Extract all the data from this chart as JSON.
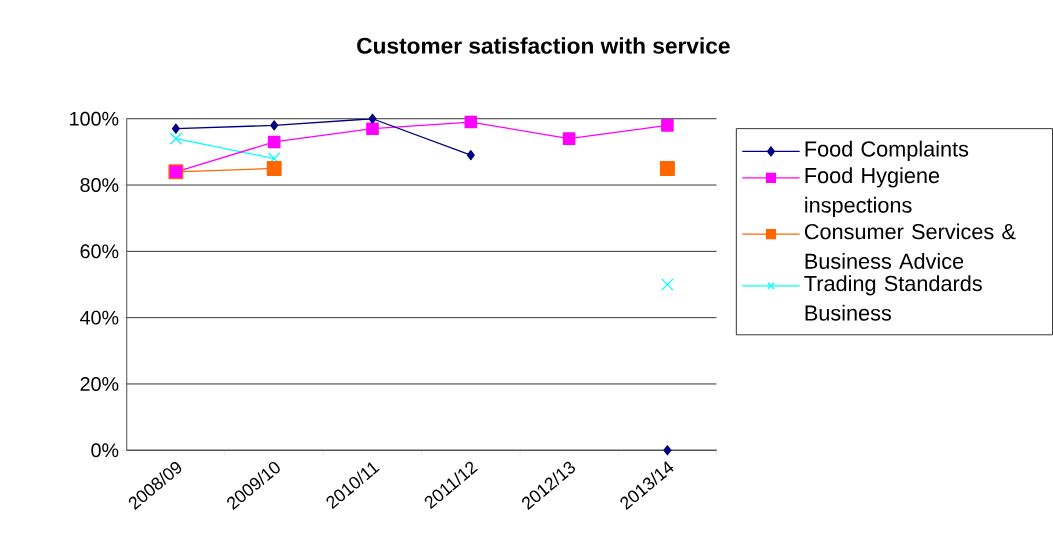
{
  "chart_data": {
    "type": "line",
    "title": "Customer satisfaction with service",
    "categories": [
      "2008/09",
      "2009/10",
      "2010/11",
      "2011/12",
      "2012/13",
      "2013/14"
    ],
    "series": [
      {
        "name": "Food Complaints",
        "color": "#000080",
        "marker": "diamond",
        "values": [
          97,
          98,
          100,
          89,
          null,
          0
        ]
      },
      {
        "name": "Food Hygiene inspections",
        "color": "#ff00ff",
        "marker": "square",
        "values": [
          84,
          93,
          97,
          99,
          94,
          98
        ]
      },
      {
        "name": "Consumer Services & Business Advice",
        "color": "#ff6600",
        "marker": "square",
        "values": [
          84,
          85,
          null,
          null,
          null,
          85
        ]
      },
      {
        "name": "Trading Standards Business",
        "color": "#00ffff",
        "marker": "cross",
        "values": [
          94,
          88,
          null,
          null,
          null,
          50
        ]
      }
    ],
    "ylim": [
      0,
      100
    ],
    "yticks": [
      {
        "value": 0,
        "label": "0%"
      },
      {
        "value": 20,
        "label": "20%"
      },
      {
        "value": 40,
        "label": "40%"
      },
      {
        "value": 60,
        "label": "60%"
      },
      {
        "value": 80,
        "label": "80%"
      },
      {
        "value": 100,
        "label": "100%"
      }
    ],
    "grid": "y",
    "legend": "right"
  }
}
